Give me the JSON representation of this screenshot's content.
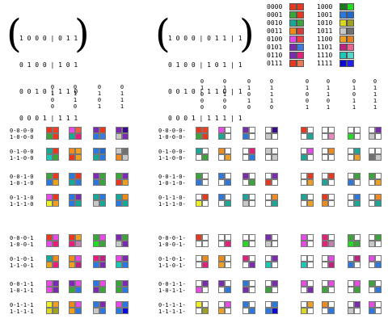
{
  "matrix_left": {
    "rows": [
      "1 0 0 0 | 0 1 1",
      "0 1 0 0 | 1 0 1",
      "0 0 1 0 | 1 1 0",
      "0 0 0 1 | 1 1 1"
    ]
  },
  "matrix_right": {
    "rows": [
      "1 0 0 0 | 0 1 1 | 1",
      "0 1 0 0 | 1 0 1 | 1",
      "0 0 1 0 | 1 1 0 | 1",
      "0 0 0 1 | 1 1 1 | 1"
    ]
  },
  "color_key": [
    {
      "code": "0000",
      "colors": [
        "#e8391e",
        "#e8391e"
      ]
    },
    {
      "code": "0001",
      "colors": [
        "#3aa63a",
        "#e8391e"
      ]
    },
    {
      "code": "0010",
      "colors": [
        "#18a89a",
        "#3aa63a"
      ]
    },
    {
      "code": "0011",
      "colors": [
        "#f08a1a",
        "#d93a3a"
      ]
    },
    {
      "code": "0100",
      "colors": [
        "#e84ae8",
        "#f04040"
      ]
    },
    {
      "code": "0101",
      "colors": [
        "#7a2bb0",
        "#3a7de0"
      ]
    },
    {
      "code": "0110",
      "colors": [
        "#7a2bb0",
        "#e6207a"
      ]
    },
    {
      "code": "0111",
      "colors": [
        "#e8391e",
        "#f07850"
      ]
    },
    {
      "code": "1000",
      "colors": [
        "#1f7a1f",
        "#1fdd1f"
      ]
    },
    {
      "code": "1001",
      "colors": [
        "#2b78e0",
        "#1f6ad0"
      ]
    },
    {
      "code": "1010",
      "colors": [
        "#d8d820",
        "#a0a020"
      ]
    },
    {
      "code": "1011",
      "colors": [
        "#c8c8c8",
        "#707070"
      ]
    },
    {
      "code": "1100",
      "colors": [
        "#f0a020",
        "#e88020"
      ]
    },
    {
      "code": "1101",
      "colors": [
        "#c02080",
        "#f06090"
      ]
    },
    {
      "code": "1110",
      "colors": [
        "#18c8b8",
        "#50d8c8"
      ]
    },
    {
      "code": "1111",
      "colors": [
        "#0a0ad8",
        "#2020f0"
      ]
    }
  ],
  "left_headers": [
    "0\n1\n0\n0",
    "0\n1\n1\n0",
    "0\n1\n0\n1",
    "0\n1\n1\n1"
  ],
  "right_headers": [
    "0\n1\n0\n0\n0",
    "0\n1\n1\n0\n0",
    "0\n1\n0\n1\n0",
    "0\n1\n1\n1\n0",
    "0\n1\n0\n0\n1",
    "0\n1\n1\n0\n1",
    "0\n1\n0\n1\n1",
    "0\n1\n1\n1\n1"
  ],
  "left_rowlabels": [
    "0-0-0-0\n1-0-0-0",
    "0-1-0-0\n1-1-0-0",
    "0-0-1-0\n1-0-1-0",
    "0-1-1-0\n1-1-1-0",
    "0-0-0-1\n1-0-0-1",
    "0-1-0-1\n1-1-0-1",
    "0-0-1-1\n1-0-1-1",
    "0-1-1-1\n1-1-1-1"
  ],
  "right_rowlabels": [
    "0-0-0-0-\n1-0-0-0-",
    "0-1-0-0-\n1-1-0-0-",
    "0-0-1-0-\n1-0-1-0-",
    "0-1-1-0-\n1-1-1-0-",
    "0-0-0-1-\n1-0-0-1-",
    "0-1-0-1-\n1-1-0-1-",
    "0-0-1-1-\n1-0-1-1-",
    "0-1-1-1-\n1-1-1-1-"
  ],
  "left_cells": [
    [
      [
        "#e8391e",
        "#f04020",
        "#3aa63a",
        "#e8391e"
      ],
      [
        "#e84ae8",
        "#f06040",
        "#18a89a",
        "#e6207a"
      ],
      [
        "#7a2bb0",
        "#e8391e",
        "#2b78e0",
        "#3a7de0"
      ],
      [
        "#7a2bb0",
        "#3a0a8a",
        "#c8c8c8",
        "#7a2bb0"
      ]
    ],
    [
      [
        "#18a89a",
        "#e8391e",
        "#18c8b8",
        "#3aa63a"
      ],
      [
        "#f08a1a",
        "#f0a020",
        "#e8391e",
        "#f0a020"
      ],
      [
        "#2b78e0",
        "#1f6ad0",
        "#18a89a",
        "#2b78e0"
      ],
      [
        "#c8c8c8",
        "#707070",
        "#f08a1a",
        "#c8c8c8"
      ]
    ],
    [
      [
        "#3aa63a",
        "#e8391e",
        "#2b78e0",
        "#f0a020"
      ],
      [
        "#2b78e0",
        "#e8391e",
        "#18a89a",
        "#2b78e0"
      ],
      [
        "#7a2bb0",
        "#3aa63a",
        "#2b78e0",
        "#3aa63a"
      ],
      [
        "#3aa63a",
        "#7a2bb0",
        "#e8391e",
        "#f0a020"
      ]
    ],
    [
      [
        "#e84ae8",
        "#e8391e",
        "#f0f020",
        "#f0a020"
      ],
      [
        "#2b78e0",
        "#7a2bb0",
        "#2b78e0",
        "#18a89a"
      ],
      [
        "#18a89a",
        "#2b78e0",
        "#c8c8c8",
        "#18a89a"
      ],
      [
        "#18a89a",
        "#f08a1a",
        "#2b78e0",
        "#18a89a"
      ]
    ],
    [
      [
        "#e8391e",
        "#e84ae8",
        "#e84ae8",
        "#e6207a"
      ],
      [
        "#e8391e",
        "#f0a020",
        "#e6207a",
        "#c080b0"
      ],
      [
        "#3aa63a",
        "#e84ae8",
        "#1fdd1f",
        "#3aa63a"
      ],
      [
        "#7a2bb0",
        "#3aa63a",
        "#c8c8c8",
        "#7a2bb0"
      ]
    ],
    [
      [
        "#18a89a",
        "#f08a1a",
        "#f0a020",
        "#e6207a"
      ],
      [
        "#f08a1a",
        "#e84ae8",
        "#f0a020",
        "#c02080"
      ],
      [
        "#e6207a",
        "#c02080",
        "#2b78e0",
        "#7a2bb0"
      ],
      [
        "#e84ae8",
        "#7a2bb0",
        "#18c8b8",
        "#2b78e0"
      ]
    ],
    [
      [
        "#e84ae8",
        "#7a2bb0",
        "#e84ae8",
        "#7a2bb0"
      ],
      [
        "#7a2bb0",
        "#e84ae8",
        "#3aa63a",
        "#2b78e0"
      ],
      [
        "#2b78e0",
        "#e84ae8",
        "#7a2bb0",
        "#3aa63a"
      ],
      [
        "#3aa63a",
        "#7a2bb0",
        "#3aa63a",
        "#2b78e0"
      ]
    ],
    [
      [
        "#f0f020",
        "#f0a020",
        "#d8d820",
        "#a0a020"
      ],
      [
        "#f08a1a",
        "#e84ae8",
        "#f0a020",
        "#2b78e0"
      ],
      [
        "#2b78e0",
        "#7a2bb0",
        "#c8c8c8",
        "#2b78e0"
      ],
      [
        "#e84ae8",
        "#2b78e0",
        "#2b78e0",
        "#0a0ad8"
      ]
    ]
  ],
  "right_cells": [
    [
      [
        "#e8391e",
        "#f04020",
        "#3aa63a",
        "#e8391e"
      ],
      [
        "#e84ae8",
        "#ffffff",
        "#18a89a",
        "#ffffff"
      ],
      [
        "#7a2bb0",
        "#ffffff",
        "#2b78e0",
        "#ffffff"
      ],
      [
        "#ffffff",
        "#3a0a8a",
        "#c8c8c8",
        "#ffffff"
      ],
      [
        "#e8391e",
        "#ffffff",
        "#ffffff",
        "#18a89a"
      ],
      [
        "#ffffff",
        "#ffffff",
        "#ffffff",
        "#e88ac0"
      ],
      [
        "#ffffff",
        "#ffffff",
        "#1fdd1f",
        "#ffffff"
      ],
      [
        "#ffffff",
        "#7a2bb0",
        "#c8c8c8",
        "#ffffff"
      ]
    ],
    [
      [
        "#18a89a",
        "#ffffff",
        "#ffffff",
        "#3aa63a"
      ],
      [
        "#f08a1a",
        "#ffffff",
        "#ffffff",
        "#f0a020"
      ],
      [
        "#ffffff",
        "#e6207a",
        "#ffffff",
        "#2b78e0"
      ],
      [
        "#c8c8c8",
        "#ffffff",
        "#ffffff",
        "#c8c8c8"
      ],
      [
        "#ffffff",
        "#e84ae8",
        "#18a89a",
        "#ffffff"
      ],
      [
        "#ffffff",
        "#f08a1a",
        "#ffffff",
        "#ffffff"
      ],
      [
        "#ffffff",
        "#18a89a",
        "#ffffff",
        "#f0a020"
      ],
      [
        "#ffffff",
        "#ffffff",
        "#707070",
        "#c8c8c8"
      ]
    ],
    [
      [
        "#3aa63a",
        "#ffffff",
        "#2b78e0",
        "#ffffff"
      ],
      [
        "#2b78e0",
        "#ffffff",
        "#ffffff",
        "#2b78e0"
      ],
      [
        "#7a2bb0",
        "#ffffff",
        "#ffffff",
        "#3aa63a"
      ],
      [
        "#ffffff",
        "#7a2bb0",
        "#e8391e",
        "#ffffff"
      ],
      [
        "#ffffff",
        "#e8391e",
        "#ffffff",
        "#f0a020"
      ],
      [
        "#ffffff",
        "#e8391e",
        "#18a89a",
        "#ffffff"
      ],
      [
        "#ffffff",
        "#3aa63a",
        "#2b78e0",
        "#ffffff"
      ],
      [
        "#3aa63a",
        "#ffffff",
        "#ffffff",
        "#f0a020"
      ]
    ],
    [
      [
        "#ffffff",
        "#e8391e",
        "#f0f020",
        "#ffffff"
      ],
      [
        "#2b78e0",
        "#ffffff",
        "#ffffff",
        "#18a89a"
      ],
      [
        "#18a89a",
        "#ffffff",
        "#c8c8c8",
        "#ffffff"
      ],
      [
        "#ffffff",
        "#f08a1a",
        "#ffffff",
        "#18a89a"
      ],
      [
        "#18a89a",
        "#ffffff",
        "#ffffff",
        "#f0a020"
      ],
      [
        "#e8391e",
        "#ffffff",
        "#f08a1a",
        "#ffffff"
      ],
      [
        "#ffffff",
        "#2b78e0",
        "#ffffff",
        "#18a89a"
      ],
      [
        "#ffffff",
        "#f08a1a",
        "#ffffff",
        "#18a89a"
      ]
    ],
    [
      [
        "#e8391e",
        "#ffffff",
        "#ffffff",
        "#ffffff"
      ],
      [
        "#ffffff",
        "#ffffff",
        "#ffffff",
        "#e6207a"
      ],
      [
        "#ffffff",
        "#ffffff",
        "#1fdd1f",
        "#ffffff"
      ],
      [
        "#7a2bb0",
        "#ffffff",
        "#c8c8c8",
        "#ffffff"
      ],
      [
        "#e84ae8",
        "#ffffff",
        "#e84ae8",
        "#ffffff"
      ],
      [
        "#e6207a",
        "#ffffff",
        "#e6207a",
        "#c080b0"
      ],
      [
        "#3aa63a",
        "#ffffff",
        "#1fdd1f",
        "#3aa63a"
      ],
      [
        "#ffffff",
        "#3aa63a",
        "#c8c8c8",
        "#ffffff"
      ]
    ],
    [
      [
        "#ffffff",
        "#f08a1a",
        "#ffffff",
        "#e6207a"
      ],
      [
        "#f08a1a",
        "#ffffff",
        "#f0a020",
        "#ffffff"
      ],
      [
        "#e6207a",
        "#ffffff",
        "#ffffff",
        "#7a2bb0"
      ],
      [
        "#ffffff",
        "#7a2bb0",
        "#18c8b8",
        "#ffffff"
      ],
      [
        "#ffffff",
        "#ffffff",
        "#18c8b8",
        "#ffffff"
      ],
      [
        "#ffffff",
        "#e84ae8",
        "#ffffff",
        "#c02080"
      ],
      [
        "#ffffff",
        "#c02080",
        "#2b78e0",
        "#ffffff"
      ],
      [
        "#e84ae8",
        "#ffffff",
        "#ffffff",
        "#2b78e0"
      ]
    ],
    [
      [
        "#ffffff",
        "#7a2bb0",
        "#e84ae8",
        "#ffffff"
      ],
      [
        "#7a2bb0",
        "#ffffff",
        "#ffffff",
        "#2b78e0"
      ],
      [
        "#2b78e0",
        "#ffffff",
        "#7a2bb0",
        "#ffffff"
      ],
      [
        "#ffffff",
        "#7a2bb0",
        "#3aa63a",
        "#ffffff"
      ],
      [
        "#e84ae8",
        "#ffffff",
        "#ffffff",
        "#7a2bb0"
      ],
      [
        "#ffffff",
        "#e84ae8",
        "#3aa63a",
        "#ffffff"
      ],
      [
        "#ffffff",
        "#e84ae8",
        "#ffffff",
        "#3aa63a"
      ],
      [
        "#3aa63a",
        "#ffffff",
        "#ffffff",
        "#2b78e0"
      ]
    ],
    [
      [
        "#f0f020",
        "#ffffff",
        "#ffffff",
        "#a0a020"
      ],
      [
        "#ffffff",
        "#e84ae8",
        "#f0a020",
        "#ffffff"
      ],
      [
        "#2b78e0",
        "#ffffff",
        "#ffffff",
        "#2b78e0"
      ],
      [
        "#ffffff",
        "#2b78e0",
        "#2b78e0",
        "#0a0ad8"
      ],
      [
        "#ffffff",
        "#f0a020",
        "#d8d820",
        "#ffffff"
      ],
      [
        "#f08a1a",
        "#ffffff",
        "#ffffff",
        "#2b78e0"
      ],
      [
        "#ffffff",
        "#7a2bb0",
        "#c8c8c8",
        "#ffffff"
      ],
      [
        "#e84ae8",
        "#ffffff",
        "#2b78e0",
        "#ffffff"
      ]
    ]
  ]
}
